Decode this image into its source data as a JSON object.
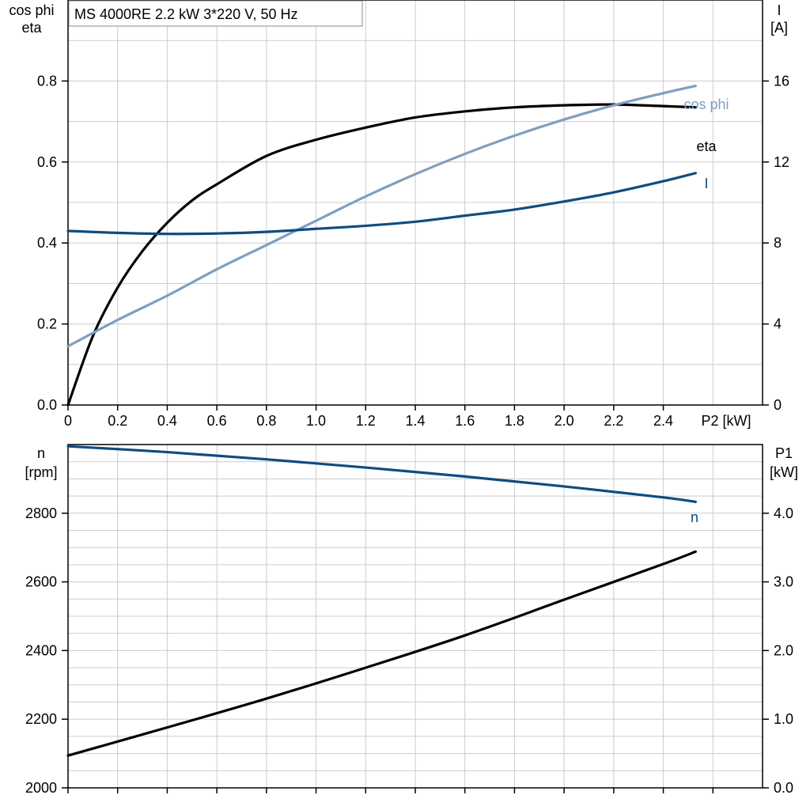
{
  "title": "MS 4000RE   2.2 kW   3*220 V, 50 Hz",
  "colors": {
    "eta": "#000000",
    "cos_phi": "#7f9fbf",
    "I": "#0f4c7f",
    "n": "#0f4c7f",
    "P1": "#000000",
    "grid": "#cccccc"
  },
  "chart_data": [
    {
      "type": "line",
      "x_label": "P2 [kW]",
      "x_ticks": [
        "0",
        "0.2",
        "0.4",
        "0.6",
        "0.8",
        "1.0",
        "1.2",
        "1.4",
        "1.6",
        "1.8",
        "2.0",
        "2.2",
        "2.4"
      ],
      "xlim": [
        0,
        2.8
      ],
      "left_axis": {
        "label_line1": "cos phi",
        "label_line2": "eta",
        "ylim": [
          0,
          1.0
        ],
        "ticks": [
          "0.0",
          "0.2",
          "0.4",
          "0.6",
          "0.8"
        ]
      },
      "right_axis": {
        "label_line1": "I",
        "label_line2": "[A]",
        "ylim": [
          0,
          20
        ],
        "ticks": [
          "0",
          "4",
          "8",
          "12",
          "16"
        ]
      },
      "grid": true,
      "series": [
        {
          "name": "eta",
          "axis": "left",
          "x": [
            0,
            0.1,
            0.2,
            0.3,
            0.4,
            0.5,
            0.6,
            0.8,
            1.0,
            1.2,
            1.4,
            1.6,
            1.8,
            2.0,
            2.2,
            2.4,
            2.53
          ],
          "y": [
            0.0,
            0.17,
            0.29,
            0.38,
            0.45,
            0.505,
            0.545,
            0.615,
            0.655,
            0.685,
            0.71,
            0.725,
            0.735,
            0.74,
            0.742,
            0.738,
            0.735
          ]
        },
        {
          "name": "cos phi",
          "axis": "left",
          "x": [
            0,
            0.2,
            0.4,
            0.6,
            0.8,
            1.0,
            1.2,
            1.4,
            1.6,
            1.8,
            2.0,
            2.2,
            2.4,
            2.53
          ],
          "y": [
            0.145,
            0.21,
            0.27,
            0.335,
            0.395,
            0.455,
            0.515,
            0.57,
            0.62,
            0.665,
            0.705,
            0.74,
            0.77,
            0.788
          ]
        },
        {
          "name": "I",
          "axis": "right",
          "x": [
            0,
            0.2,
            0.4,
            0.6,
            0.8,
            1.0,
            1.2,
            1.4,
            1.6,
            1.8,
            2.0,
            2.2,
            2.4,
            2.53
          ],
          "y": [
            8.6,
            8.5,
            8.45,
            8.47,
            8.55,
            8.7,
            8.85,
            9.05,
            9.35,
            9.65,
            10.05,
            10.5,
            11.05,
            11.45
          ]
        }
      ]
    },
    {
      "type": "line",
      "xlim": [
        0,
        2.8
      ],
      "left_axis": {
        "label_line1": "n",
        "label_line2": "[rpm]",
        "ylim": [
          2000,
          3000
        ],
        "ticks": [
          "2000",
          "2200",
          "2400",
          "2600",
          "2800"
        ]
      },
      "right_axis": {
        "label_line1": "P1",
        "label_line2": "[kW]",
        "ylim": [
          0,
          5
        ],
        "ticks": [
          "0.0",
          "1.0",
          "2.0",
          "3.0",
          "4.0"
        ]
      },
      "grid": true,
      "series": [
        {
          "name": "n",
          "axis": "left",
          "x": [
            0,
            0.4,
            0.8,
            1.2,
            1.6,
            2.0,
            2.4,
            2.53
          ],
          "y": [
            2995,
            2978,
            2957,
            2933,
            2907,
            2878,
            2846,
            2833
          ]
        },
        {
          "name": "P1",
          "axis": "right",
          "x": [
            0,
            0.4,
            0.8,
            1.2,
            1.6,
            2.0,
            2.4,
            2.53
          ],
          "y": [
            0.47,
            0.88,
            1.3,
            1.75,
            2.22,
            2.74,
            3.26,
            3.44
          ]
        }
      ]
    }
  ]
}
